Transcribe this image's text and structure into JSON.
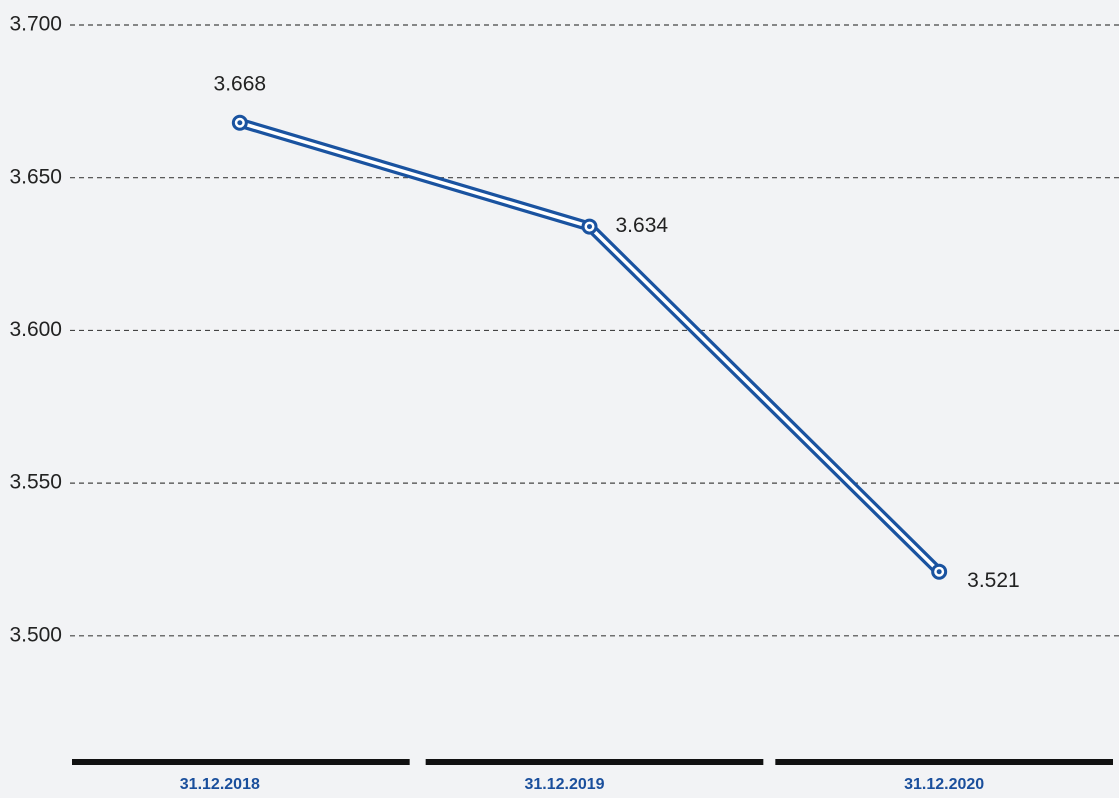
{
  "chart_data": {
    "type": "line",
    "categories": [
      "31.12.2018",
      "31.12.2019",
      "31.12.2020"
    ],
    "series": [
      {
        "color": "#1a53a0",
        "values": [
          3668,
          3634,
          3521
        ],
        "value_labels": [
          "3.668",
          "3.634",
          "3.521"
        ]
      }
    ],
    "ylim": [
      3460,
      3700
    ],
    "yticks": [
      {
        "value": 3500,
        "label": "3.500"
      },
      {
        "value": 3550,
        "label": "3.550"
      },
      {
        "value": 3600,
        "label": "3.600"
      },
      {
        "value": 3650,
        "label": "3.650"
      },
      {
        "value": 3700,
        "label": "3.700"
      }
    ],
    "grid": true
  }
}
